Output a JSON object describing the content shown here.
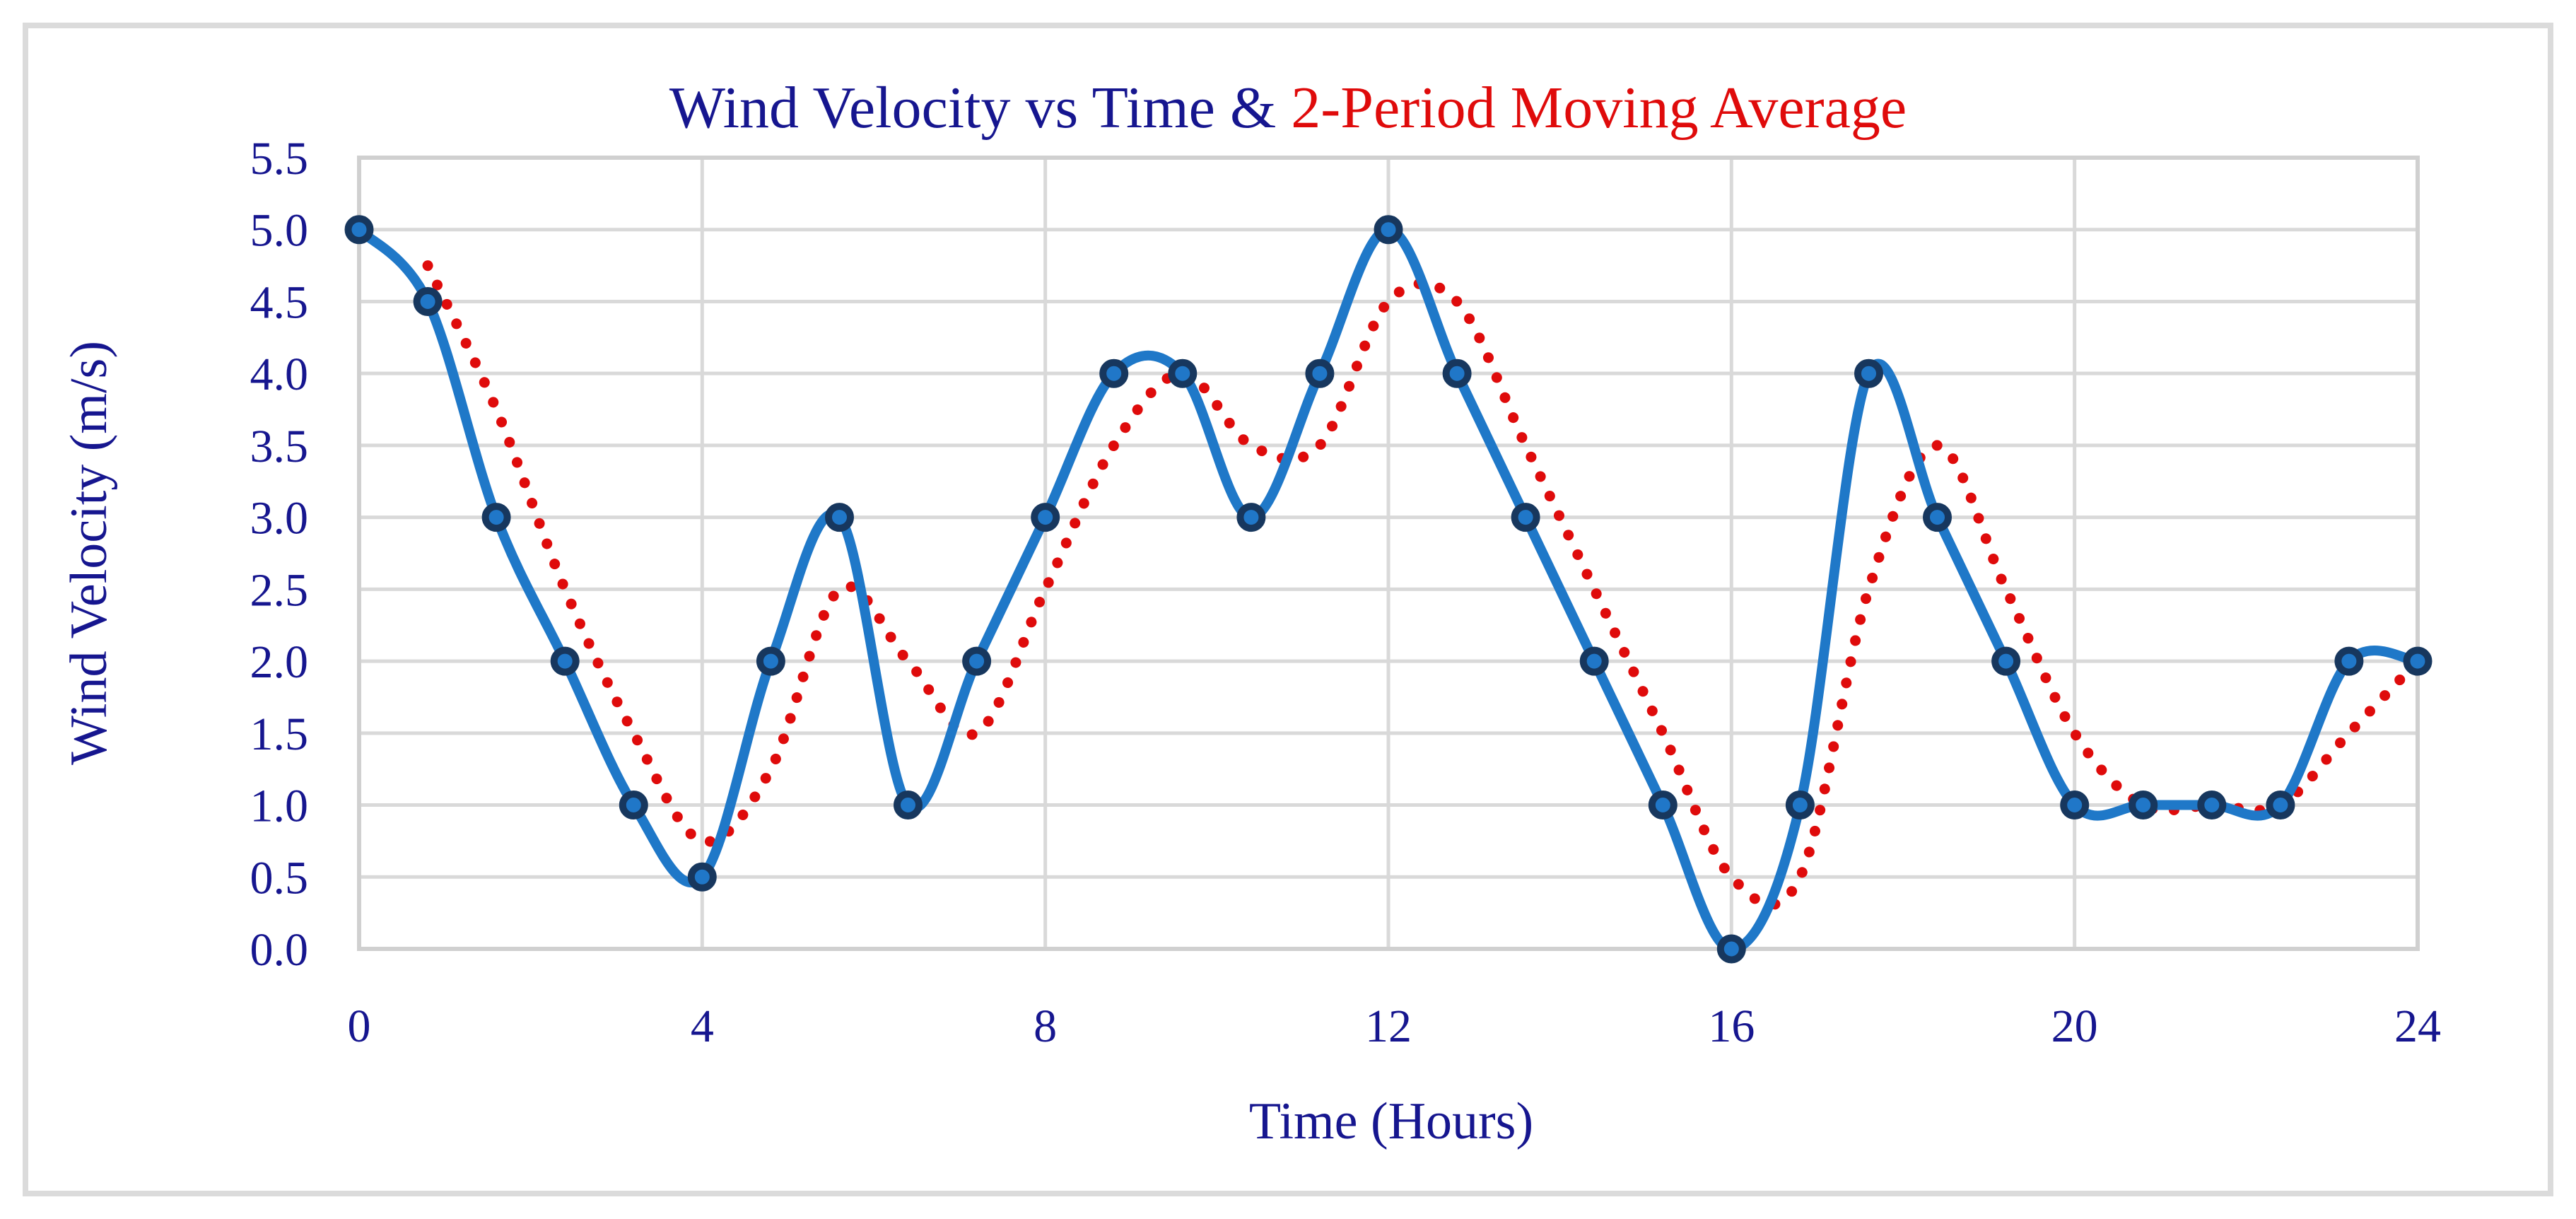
{
  "figure": {
    "title_primary": "Wind Velocity vs Time & ",
    "title_secondary": "2-Period Moving Average",
    "x_axis_title": "Time (Hours)",
    "y_axis_title": "Wind Velocity (m/s)"
  },
  "colors": {
    "text_navy": "#16168F",
    "title_red": "#DF0B0B",
    "wind_velocity_blue": "#1F78C8",
    "marker_fill": "#2077C8",
    "marker_ring": "#17375E",
    "moving_average_red": "#DF0B0B",
    "gridline_gray": "#D9D9D9",
    "plot_border_gray": "#D0D0D0",
    "figure_border_gray": "#DBDBDB"
  },
  "chart_data": {
    "type": "line",
    "title": "Wind Velocity vs Time & 2-Period Moving Average",
    "xlabel": "Time (Hours)",
    "ylabel": "Wind Velocity (m/s)",
    "xlim": [
      0,
      24
    ],
    "ylim": [
      0,
      5.5
    ],
    "grid": true,
    "legend_position": "none",
    "x_ticks": [
      0,
      4,
      8,
      12,
      16,
      20,
      24
    ],
    "x_tick_labels": [
      "0",
      "4",
      "8",
      "12",
      "16",
      "20",
      "24"
    ],
    "y_ticks": [
      0,
      0.5,
      1,
      1.5,
      2,
      2.5,
      3,
      3.5,
      4,
      4.5,
      5,
      5.5
    ],
    "y_tick_labels": [
      "0.0",
      "0.5",
      "1.0",
      "1.5",
      "2.0",
      "2.5",
      "3.0",
      "3.5",
      "4.0",
      "4.5",
      "5.0",
      "5.5"
    ],
    "series": [
      {
        "name": "Wind Velocity",
        "line_style": "solid",
        "smoothed": true,
        "markers": true,
        "color": "#1F78C8",
        "x": [
          0,
          0.8,
          1.6,
          2.4,
          3.2,
          4,
          4.8,
          5.6,
          6.4,
          7.2,
          8,
          8.8,
          9.6,
          10.4,
          11.2,
          12,
          12.8,
          13.6,
          14.4,
          15.2,
          16,
          16.8,
          17.6,
          18.4,
          19.2,
          20,
          20.8,
          21.6,
          22.4,
          23.2,
          24
        ],
        "values": [
          5,
          4.5,
          3,
          2,
          1,
          0.5,
          2,
          3,
          1,
          2,
          3,
          4,
          4,
          3,
          4,
          5,
          4,
          3,
          2,
          1,
          0,
          1,
          4,
          3,
          2,
          1,
          1,
          1,
          1,
          2,
          2
        ]
      },
      {
        "name": "2-Period Moving Average",
        "line_style": "dotted",
        "smoothed": true,
        "markers": false,
        "color": "#DF0B0B",
        "x": [
          0.8,
          1.6,
          2.4,
          3.2,
          4,
          4.8,
          5.6,
          6.4,
          7.2,
          8,
          8.8,
          9.6,
          10.4,
          11.2,
          12,
          12.8,
          13.6,
          14.4,
          15.2,
          16,
          16.8,
          17.6,
          18.4,
          19.2,
          20,
          20.8,
          21.6,
          22.4,
          23.2,
          24
        ],
        "values": [
          4.75,
          3.75,
          2.5,
          1.5,
          0.75,
          1.25,
          2.5,
          2,
          1.5,
          2.5,
          3.5,
          4,
          3.5,
          3.5,
          4.5,
          4.5,
          3.5,
          2.5,
          1.5,
          0.5,
          0.5,
          2.5,
          3.5,
          2.5,
          1.5,
          1,
          1,
          1,
          1.5,
          2
        ]
      }
    ]
  }
}
